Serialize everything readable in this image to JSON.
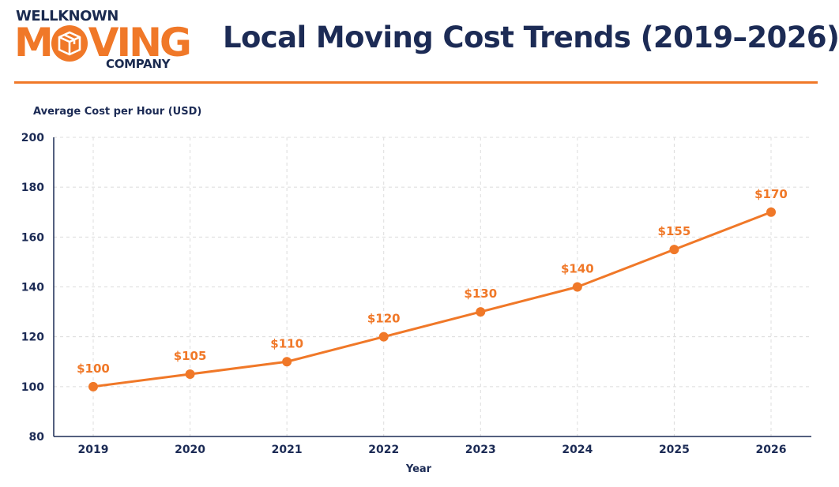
{
  "logo": {
    "top": "WELLKNOWN",
    "middle_a": "M",
    "middle_b": "VING",
    "bottom": "COMPANY"
  },
  "title": "Local Moving Cost Trends (2019–2026)",
  "colors": {
    "accent": "#f07828",
    "navy": "#1c2b55",
    "grid": "#dcdcdc"
  },
  "chart_data": {
    "type": "line",
    "title": "Local Moving Cost Trends (2019–2026)",
    "xlabel": "Year",
    "ylabel": "Average Cost per Hour (USD)",
    "x": [
      "2019",
      "2020",
      "2021",
      "2022",
      "2023",
      "2024",
      "2025",
      "2026"
    ],
    "y": [
      100,
      105,
      110,
      120,
      130,
      140,
      155,
      170
    ],
    "data_labels": [
      "$100",
      "$105",
      "$110",
      "$120",
      "$130",
      "$140",
      "$155",
      "$170"
    ],
    "ylim": [
      80,
      200
    ],
    "yticks": [
      "80",
      "100",
      "120",
      "140",
      "160",
      "180",
      "200"
    ],
    "grid": true,
    "legend": "none"
  }
}
